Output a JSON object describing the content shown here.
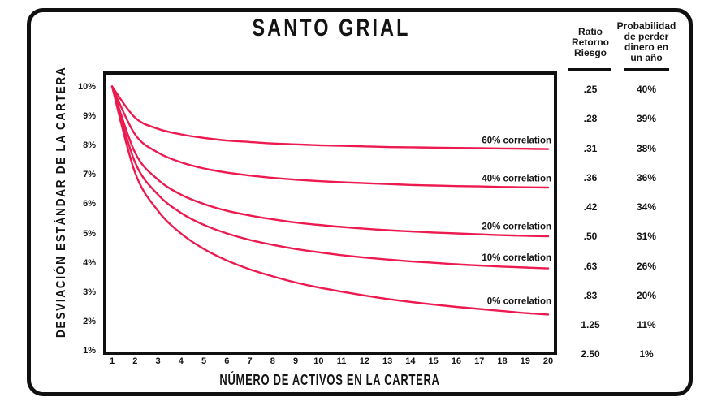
{
  "title": "SANTO GRIAL",
  "chart_data": {
    "type": "line",
    "title": "SANTO GRIAL",
    "xlabel": "NÚMERO DE ACTIVOS EN LA CARTERA",
    "ylabel": "DESVIACIÓN ESTÁNDAR DE LA CARTERA",
    "x": [
      1,
      2,
      3,
      4,
      5,
      6,
      7,
      8,
      9,
      10,
      11,
      12,
      13,
      14,
      15,
      16,
      17,
      18,
      19,
      20
    ],
    "xtick_labels": [
      "1",
      "2",
      "3",
      "4",
      "5",
      "6",
      "7",
      "8",
      "9",
      "10",
      "11",
      "12",
      "13",
      "14",
      "15",
      "16",
      "17",
      "18",
      "19",
      "20"
    ],
    "ytick_labels": [
      "10%",
      "9%",
      "8%",
      "7%",
      "6%",
      "5%",
      "4%",
      "3%",
      "2%",
      "1%"
    ],
    "xlim": [
      1,
      20
    ],
    "ylim": [
      1,
      10
    ],
    "grid": false,
    "legend_position": "inline-right",
    "curve_color": "#ed1a50",
    "series": [
      {
        "name": "60% correlation",
        "values": [
          10.0,
          8.94,
          8.56,
          8.37,
          8.25,
          8.16,
          8.11,
          8.06,
          8.03,
          8.0,
          7.98,
          7.96,
          7.94,
          7.93,
          7.92,
          7.91,
          7.9,
          7.89,
          7.88,
          7.87
        ]
      },
      {
        "name": "40% correlation",
        "values": [
          10.0,
          8.37,
          7.75,
          7.42,
          7.21,
          7.07,
          6.97,
          6.89,
          6.83,
          6.78,
          6.74,
          6.71,
          6.68,
          6.65,
          6.63,
          6.61,
          6.6,
          6.58,
          6.57,
          6.56
        ]
      },
      {
        "name": "20% correlation",
        "values": [
          10.0,
          7.75,
          6.83,
          6.32,
          6.0,
          5.77,
          5.61,
          5.48,
          5.37,
          5.29,
          5.22,
          5.16,
          5.11,
          5.07,
          5.03,
          5.0,
          4.97,
          4.94,
          4.92,
          4.9
        ]
      },
      {
        "name": "10% correlation",
        "values": [
          10.0,
          7.42,
          6.32,
          5.7,
          5.29,
          5.0,
          4.78,
          4.61,
          4.47,
          4.36,
          4.26,
          4.18,
          4.11,
          4.05,
          4.0,
          3.95,
          3.91,
          3.87,
          3.84,
          3.81
        ]
      },
      {
        "name": "0% correlation",
        "values": [
          10.0,
          7.07,
          5.77,
          5.0,
          4.47,
          4.08,
          3.78,
          3.54,
          3.33,
          3.16,
          3.02,
          2.89,
          2.77,
          2.67,
          2.58,
          2.5,
          2.43,
          2.36,
          2.29,
          2.24
        ]
      }
    ]
  },
  "side_table": {
    "columns": [
      {
        "header": "Ratio\nRetorno\nRiesgo"
      },
      {
        "header": "Probabilidad\nde perder\ndinero en\nun año"
      }
    ],
    "rows": [
      {
        "ratio": ".25",
        "prob": "40%"
      },
      {
        "ratio": ".28",
        "prob": "39%"
      },
      {
        "ratio": ".31",
        "prob": "38%"
      },
      {
        "ratio": ".36",
        "prob": "36%"
      },
      {
        "ratio": ".42",
        "prob": "34%"
      },
      {
        "ratio": ".50",
        "prob": "31%"
      },
      {
        "ratio": ".63",
        "prob": "26%"
      },
      {
        "ratio": ".83",
        "prob": "20%"
      },
      {
        "ratio": "1.25",
        "prob": "11%"
      },
      {
        "ratio": "2.50",
        "prob": "1%"
      }
    ]
  },
  "colors": {
    "curve": "#ed1a50",
    "ink": "#101010",
    "background": "#ffffff"
  }
}
